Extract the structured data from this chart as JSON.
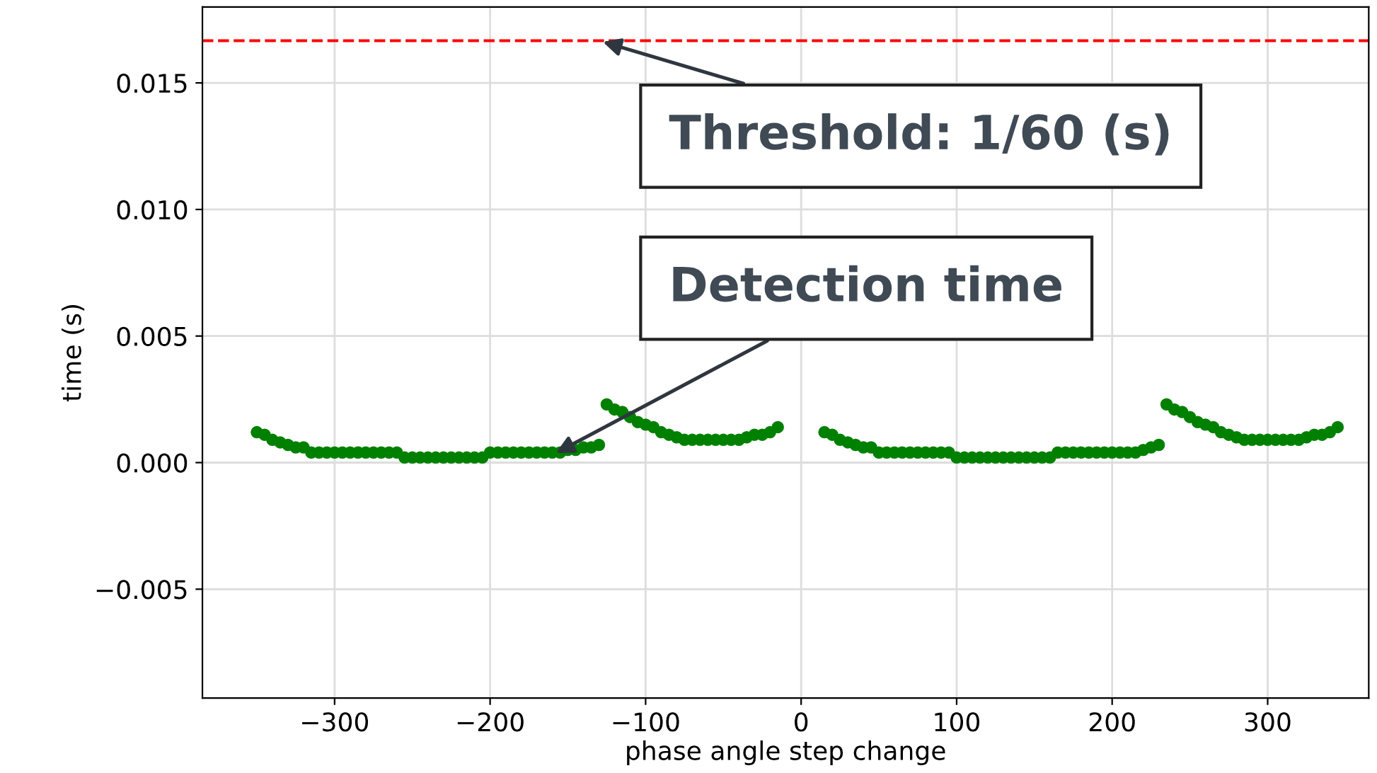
{
  "chart_data": {
    "type": "scatter",
    "xlabel": "phase angle step change",
    "ylabel": "time (s)",
    "series": [
      {
        "color": "#008000",
        "x": [
          -350,
          -345,
          -340,
          -335,
          -330,
          -325,
          -320,
          -315,
          -310,
          -305,
          -300,
          -295,
          -290,
          -285,
          -280,
          -275,
          -270,
          -265,
          -260,
          -255,
          -250,
          -245,
          -240,
          -235,
          -230,
          -225,
          -220,
          -215,
          -210,
          -205,
          -200,
          -195,
          -190,
          -185,
          -180,
          -175,
          -170,
          -165,
          -160,
          -155,
          -150,
          -145,
          -140,
          -135,
          -130,
          -125,
          -120,
          -115,
          -110,
          -105,
          -100,
          -95,
          -90,
          -85,
          -80,
          -75,
          -70,
          -65,
          -60,
          -55,
          -50,
          -45,
          -40,
          -35,
          -30,
          -25,
          -20,
          -15,
          15,
          20,
          25,
          30,
          35,
          40,
          45,
          50,
          55,
          60,
          65,
          70,
          75,
          80,
          85,
          90,
          95,
          100,
          105,
          110,
          115,
          120,
          125,
          130,
          135,
          140,
          145,
          150,
          155,
          160,
          165,
          170,
          175,
          180,
          185,
          190,
          195,
          200,
          205,
          210,
          215,
          220,
          225,
          230,
          235,
          240,
          245,
          250,
          255,
          260,
          265,
          270,
          275,
          280,
          285,
          290,
          295,
          300,
          305,
          310,
          315,
          320,
          325,
          330,
          335,
          340,
          345
        ],
        "values": [
          0.0012,
          0.0011,
          0.0009,
          0.0008,
          0.0007,
          0.0006,
          0.0006,
          0.0004,
          0.0004,
          0.0004,
          0.0004,
          0.0004,
          0.0004,
          0.0004,
          0.0004,
          0.0004,
          0.0004,
          0.0004,
          0.0004,
          0.0002,
          0.0002,
          0.0002,
          0.0002,
          0.0002,
          0.0002,
          0.0002,
          0.0002,
          0.0002,
          0.0002,
          0.0002,
          0.0004,
          0.0004,
          0.0004,
          0.0004,
          0.0004,
          0.0004,
          0.0004,
          0.0004,
          0.0004,
          0.0004,
          0.0005,
          0.0005,
          0.0006,
          0.0006,
          0.0007,
          0.0023,
          0.0021,
          0.002,
          0.0018,
          0.0016,
          0.0015,
          0.0014,
          0.0012,
          0.0011,
          0.001,
          0.0009,
          0.0009,
          0.0009,
          0.0009,
          0.0009,
          0.0009,
          0.0009,
          0.0009,
          0.001,
          0.0011,
          0.0011,
          0.0012,
          0.0014,
          0.0012,
          0.0011,
          0.0009,
          0.0008,
          0.0007,
          0.0006,
          0.0006,
          0.0004,
          0.0004,
          0.0004,
          0.0004,
          0.0004,
          0.0004,
          0.0004,
          0.0004,
          0.0004,
          0.0004,
          0.0002,
          0.0002,
          0.0002,
          0.0002,
          0.0002,
          0.0002,
          0.0002,
          0.0002,
          0.0002,
          0.0002,
          0.0002,
          0.0002,
          0.0002,
          0.0004,
          0.0004,
          0.0004,
          0.0004,
          0.0004,
          0.0004,
          0.0004,
          0.0004,
          0.0004,
          0.0004,
          0.0004,
          0.0005,
          0.0006,
          0.0007,
          0.0023,
          0.0021,
          0.002,
          0.0018,
          0.0016,
          0.0015,
          0.0014,
          0.0012,
          0.0011,
          0.001,
          0.0009,
          0.0009,
          0.0009,
          0.0009,
          0.0009,
          0.0009,
          0.0009,
          0.0009,
          0.001,
          0.0011,
          0.0011,
          0.0012,
          0.0014
        ]
      }
    ],
    "marker": "circle",
    "xlim": [
      -385,
      365
    ],
    "ylim": [
      -0.0093,
      0.018
    ],
    "xticks": [
      {
        "value": -300,
        "label": "−300"
      },
      {
        "value": -200,
        "label": "−200"
      },
      {
        "value": -100,
        "label": "−100"
      },
      0,
      100,
      200,
      300
    ],
    "yticks": [
      {
        "value": -0.005,
        "label": "−0.005"
      },
      {
        "value": 0,
        "label": "0.000"
      },
      0.005,
      {
        "value": 0.01,
        "label": "0.010"
      },
      0.015
    ],
    "grid": true,
    "ref_lines": [
      {
        "axis": "y",
        "value": 0.016667,
        "color": "#ff0000",
        "line_style": "dashed"
      }
    ],
    "annotations": [
      {
        "text": "Threshold: 1/60 (s)",
        "x": -130,
        "y": 0.016667
      },
      {
        "text": "Detection time",
        "x": -160,
        "y": 0.0003
      }
    ]
  }
}
